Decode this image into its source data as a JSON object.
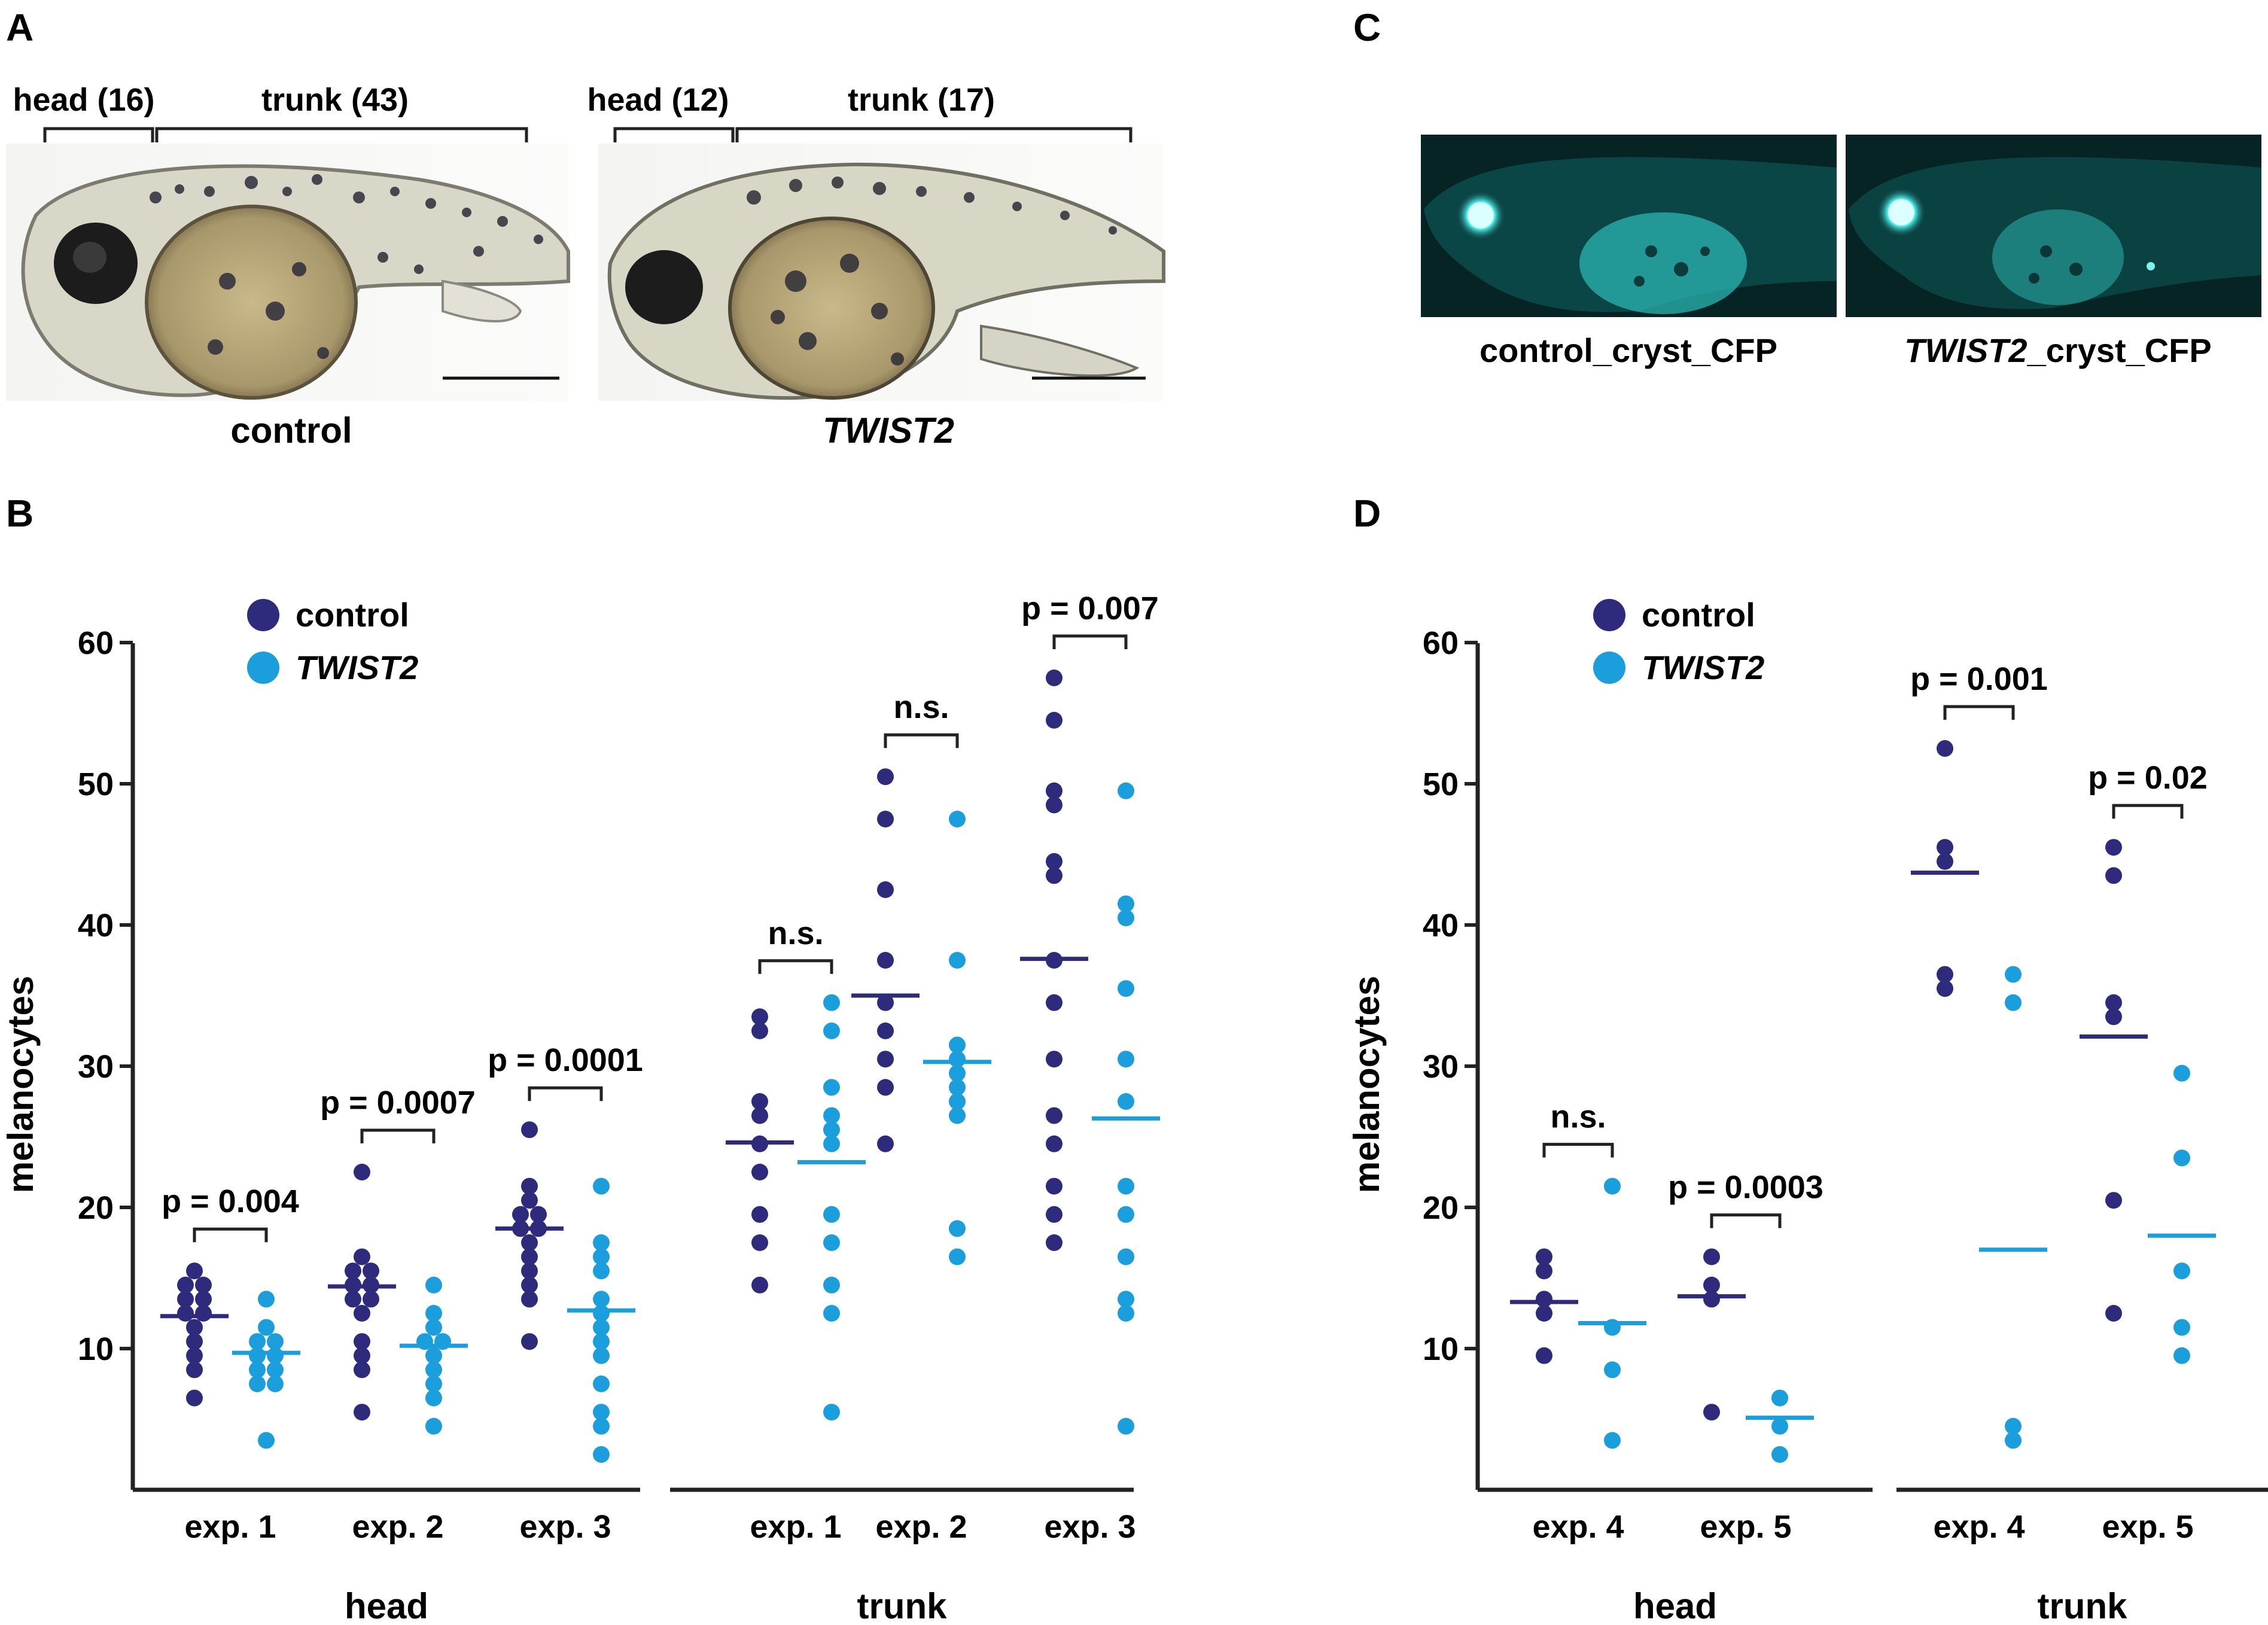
{
  "panels": {
    "A": {
      "letter": "A",
      "control": {
        "head_label": "head (16)",
        "trunk_label": "trunk (43)",
        "caption": "control"
      },
      "twist": {
        "head_label": "head (12)",
        "trunk_label": "trunk (17)",
        "caption": "TWIST2"
      }
    },
    "C": {
      "letter": "C",
      "left_caption": "control_cryst_CFP",
      "right_caption": "TWIST2_cryst_CFP",
      "italic_part": "TWIST2",
      "suffix": "_cryst_CFP"
    },
    "B": {
      "letter": "B"
    },
    "D": {
      "letter": "D"
    }
  },
  "colors": {
    "control": "#2e2a7c",
    "twist": "#1a9fdc",
    "axis": "#222222",
    "fluor_bg": "#062a2a",
    "fluor": "#3fd4cf"
  },
  "chart_data": [
    {
      "type": "scatter",
      "panel": "B",
      "ylabel": "melanocytes",
      "ylim": [
        0,
        60
      ],
      "yticks": [
        10,
        20,
        30,
        40,
        50,
        60
      ],
      "legend": [
        {
          "name": "control",
          "color": "#2e2a7c"
        },
        {
          "name": "TWIST2",
          "color": "#1a9fdc",
          "italic": true
        }
      ],
      "groups": [
        {
          "label": "head",
          "experiments": [
            {
              "label": "exp. 1",
              "p": "p = 0.004",
              "control": {
                "mean": 12.3,
                "values": [
                  15.5,
                  14.5,
                  14.5,
                  13.5,
                  13.5,
                  12.5,
                  12.5,
                  11.5,
                  10.5,
                  9.5,
                  8.5,
                  6.5
                ]
              },
              "twist": {
                "mean": 9.7,
                "values": [
                  13.5,
                  11.5,
                  10.5,
                  10.5,
                  9.5,
                  9.5,
                  8.5,
                  8.5,
                  7.5,
                  7.5,
                  3.5
                ]
              }
            },
            {
              "label": "exp. 2",
              "p": "p = 0.0007",
              "control": {
                "mean": 14.4,
                "values": [
                  22.5,
                  16.5,
                  15.5,
                  15.5,
                  14.5,
                  14.5,
                  13.5,
                  13.5,
                  12.5,
                  10.5,
                  9.5,
                  8.5,
                  5.5
                ]
              },
              "twist": {
                "mean": 10.2,
                "values": [
                  14.5,
                  12.5,
                  11.5,
                  10.5,
                  10.5,
                  9.5,
                  8.5,
                  7.5,
                  6.5,
                  4.5
                ]
              }
            },
            {
              "label": "exp. 3",
              "p": "p = 0.0001",
              "control": {
                "mean": 18.5,
                "values": [
                  25.5,
                  21.5,
                  20.5,
                  19.5,
                  19.5,
                  18.5,
                  18.5,
                  17.5,
                  16.5,
                  15.5,
                  14.5,
                  13.5,
                  10.5
                ]
              },
              "twist": {
                "mean": 12.7,
                "values": [
                  21.5,
                  17.5,
                  16.5,
                  15.5,
                  13.5,
                  12.5,
                  11.5,
                  10.5,
                  9.5,
                  7.5,
                  5.5,
                  4.5,
                  2.5
                ]
              }
            }
          ]
        },
        {
          "label": "trunk",
          "experiments": [
            {
              "label": "exp. 1",
              "p": "n.s.",
              "control": {
                "mean": 24.6,
                "values": [
                  33.5,
                  32.5,
                  27.5,
                  26.5,
                  24.5,
                  22.5,
                  19.5,
                  17.5,
                  14.5
                ]
              },
              "twist": {
                "mean": 23.2,
                "values": [
                  34.5,
                  32.5,
                  28.5,
                  26.5,
                  25.5,
                  24.5,
                  19.5,
                  17.5,
                  14.5,
                  12.5,
                  5.5
                ]
              }
            },
            {
              "label": "exp. 2",
              "p": "n.s.",
              "control": {
                "mean": 35.0,
                "values": [
                  50.5,
                  47.5,
                  42.5,
                  37.5,
                  34.5,
                  32.5,
                  30.5,
                  28.5,
                  24.5
                ]
              },
              "twist": {
                "mean": 30.3,
                "values": [
                  47.5,
                  37.5,
                  31.5,
                  30.5,
                  29.5,
                  28.5,
                  27.5,
                  26.5,
                  18.5,
                  16.5
                ]
              }
            },
            {
              "label": "exp. 3",
              "p": "p = 0.007",
              "control": {
                "mean": 37.6,
                "values": [
                  57.5,
                  54.5,
                  49.5,
                  48.5,
                  44.5,
                  43.5,
                  37.5,
                  34.5,
                  30.5,
                  26.5,
                  24.5,
                  21.5,
                  19.5,
                  17.5
                ]
              },
              "twist": {
                "mean": 26.3,
                "values": [
                  49.5,
                  41.5,
                  40.5,
                  35.5,
                  30.5,
                  27.5,
                  21.5,
                  19.5,
                  16.5,
                  13.5,
                  12.5,
                  4.5
                ]
              }
            }
          ]
        }
      ]
    },
    {
      "type": "scatter",
      "panel": "D",
      "ylabel": "melanocytes",
      "ylim": [
        0,
        60
      ],
      "yticks": [
        10,
        20,
        30,
        40,
        50,
        60
      ],
      "legend": [
        {
          "name": "control",
          "color": "#2e2a7c"
        },
        {
          "name": "TWIST2",
          "color": "#1a9fdc",
          "italic": true
        }
      ],
      "groups": [
        {
          "label": "head",
          "experiments": [
            {
              "label": "exp. 4",
              "p": "n.s.",
              "control": {
                "mean": 13.3,
                "values": [
                  16.5,
                  15.5,
                  13.5,
                  12.5,
                  9.5
                ]
              },
              "twist": {
                "mean": 11.8,
                "values": [
                  21.5,
                  11.5,
                  8.5,
                  3.5
                ]
              }
            },
            {
              "label": "exp. 5",
              "p": "p = 0.0003",
              "control": {
                "mean": 13.7,
                "values": [
                  16.5,
                  14.5,
                  13.5,
                  5.5
                ]
              },
              "twist": {
                "mean": 5.1,
                "values": [
                  6.5,
                  4.5,
                  2.5
                ]
              }
            }
          ]
        },
        {
          "label": "trunk",
          "experiments": [
            {
              "label": "exp. 4",
              "p": "p = 0.001",
              "control": {
                "mean": 43.7,
                "values": [
                  52.5,
                  45.5,
                  44.5,
                  36.5,
                  35.5
                ]
              },
              "twist": {
                "mean": 17.0,
                "values": [
                  36.5,
                  34.5,
                  4.5,
                  3.5
                ]
              }
            },
            {
              "label": "exp. 5",
              "p": "p = 0.02",
              "control": {
                "mean": 32.1,
                "values": [
                  45.5,
                  43.5,
                  34.5,
                  33.5,
                  20.5,
                  12.5
                ]
              },
              "twist": {
                "mean": 18.0,
                "values": [
                  29.5,
                  23.5,
                  15.5,
                  11.5,
                  9.5
                ]
              }
            }
          ]
        }
      ]
    }
  ]
}
